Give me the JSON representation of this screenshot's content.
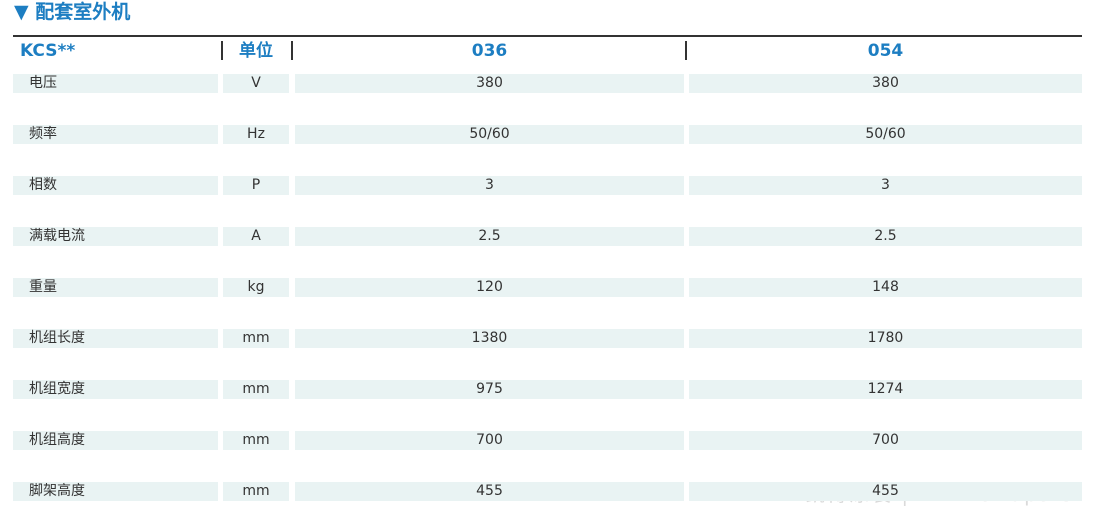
{
  "title": "▼ 配套室外机",
  "table": {
    "header": [
      "KCS**",
      "单位",
      "036",
      "054"
    ],
    "rows": [
      [
        "电压",
        "V",
        "380",
        "380"
      ],
      [
        "频率",
        "Hz",
        "50/60",
        "50/60"
      ],
      [
        "相数",
        "P",
        "3",
        "3"
      ],
      [
        "满载电流",
        "A",
        "2.5",
        "2.5"
      ],
      [
        "重量",
        "kg",
        "120",
        "148"
      ],
      [
        "机组长度",
        "mm",
        "1380",
        "1780"
      ],
      [
        "机组宽度",
        "mm",
        "975",
        "1274"
      ],
      [
        "机组高度",
        "mm",
        "700",
        "700"
      ],
      [
        "脚架高度",
        "mm",
        "455",
        "455"
      ]
    ]
  },
  "watermark": "凯博涂装 | www.91ups.c"
}
